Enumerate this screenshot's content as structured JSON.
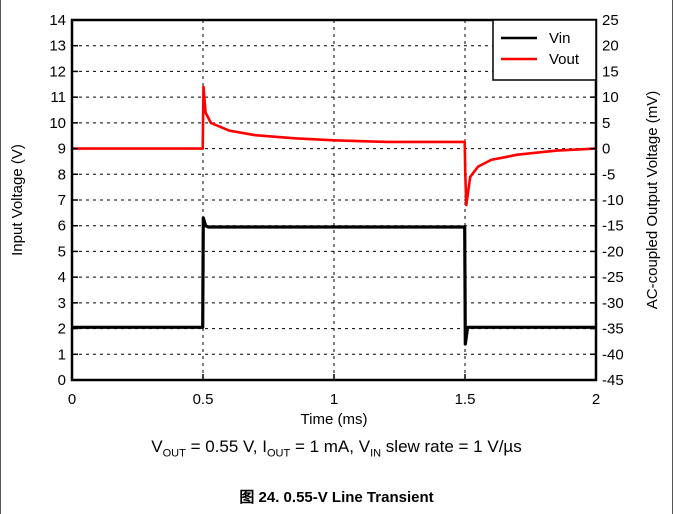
{
  "chart_data": {
    "type": "line",
    "xlabel": "Time (ms)",
    "ylabel_left": "Input Voltage (V)",
    "ylabel_right": "AC-coupled Output Voltage (mV)",
    "xlim": [
      0,
      2
    ],
    "ylim_left": [
      0,
      14
    ],
    "ylim_right": [
      -45,
      25
    ],
    "x_ticks": [
      "0",
      "0.5",
      "1",
      "1.5",
      "2"
    ],
    "y_ticks_left": [
      "0",
      "1",
      "2",
      "3",
      "4",
      "5",
      "6",
      "7",
      "8",
      "9",
      "10",
      "11",
      "12",
      "13",
      "14"
    ],
    "y_ticks_right": [
      "-45",
      "-40",
      "-35",
      "-30",
      "-25",
      "-20",
      "-15",
      "-10",
      "-5",
      "0",
      "5",
      "10",
      "15",
      "20",
      "25"
    ],
    "grid": true,
    "legend_position": "top-right",
    "series": [
      {
        "name": "Vin",
        "axis": "left",
        "color": "#000000",
        "x": [
          0,
          0.499,
          0.501,
          0.51,
          0.52,
          1.499,
          1.501,
          1.51,
          1.52,
          2.0
        ],
        "y": [
          2.05,
          2.05,
          6.3,
          6.0,
          5.95,
          5.95,
          1.4,
          2.05,
          2.05,
          2.05
        ]
      },
      {
        "name": "Vout",
        "axis": "right",
        "color": "#ff0000",
        "x": [
          0,
          0.499,
          0.502,
          0.51,
          0.53,
          0.6,
          0.7,
          0.85,
          1.0,
          1.2,
          1.499,
          1.501,
          1.505,
          1.52,
          1.55,
          1.6,
          1.7,
          1.85,
          2.0
        ],
        "y": [
          0,
          0,
          12,
          7,
          5.0,
          3.5,
          2.6,
          2.0,
          1.6,
          1.3,
          1.3,
          -5,
          -11,
          -5.5,
          -3.5,
          -2.2,
          -1.2,
          -0.4,
          0
        ]
      }
    ]
  },
  "conditions": {
    "vout_label": "V",
    "vout_sub": "OUT",
    "vout_val": " = 0.55 V, I",
    "iout_sub": "OUT",
    "iout_val": " = 1 mA, V",
    "vin_sub": "IN",
    "slew": " slew rate = 1 V/µs"
  },
  "caption": "图 24. 0.55-V Line Transient"
}
